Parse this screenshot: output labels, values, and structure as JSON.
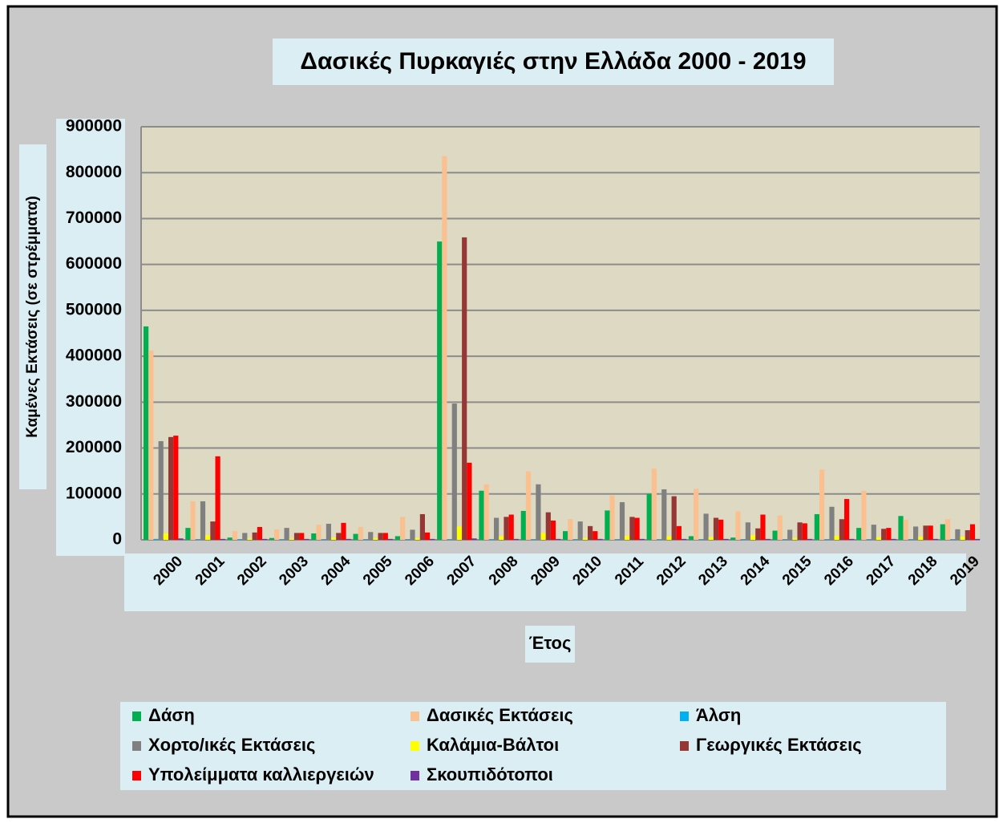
{
  "chart_data": {
    "type": "bar",
    "title": "Δασικές Πυρκαγιές στην Ελλάδα 2000 - 2019",
    "x_label": "Έτος",
    "y_label": "Καμένες Εκτάσεις (σε στρέμματα)",
    "categories": [
      "2000",
      "2001",
      "2002",
      "2003",
      "2004",
      "2005",
      "2006",
      "2007",
      "2008",
      "2009",
      "2010",
      "2011",
      "2012",
      "2013",
      "2014",
      "2015",
      "2016",
      "2017",
      "2018",
      "2019"
    ],
    "series": [
      {
        "name": "Δάση",
        "color": "#00b050",
        "values": [
          465000,
          26000,
          5000,
          4000,
          14000,
          13000,
          8000,
          650000,
          107000,
          63000,
          19000,
          64000,
          100000,
          8000,
          5000,
          20000,
          56000,
          26000,
          52000,
          34000
        ]
      },
      {
        "name": "Δασικές Εκτάσεις",
        "color": "#fac090",
        "values": [
          412000,
          84000,
          19000,
          23000,
          33000,
          28000,
          50000,
          836000,
          121000,
          149000,
          45000,
          97000,
          155000,
          111000,
          62000,
          53000,
          153000,
          107000,
          44000,
          45000
        ]
      },
      {
        "name": "Άλση",
        "color": "#00b0f0",
        "values": [
          2000,
          1000,
          1000,
          1000,
          1000,
          1000,
          1000,
          1000,
          1000,
          1000,
          1000,
          1000,
          1000,
          1000,
          1000,
          1000,
          1000,
          1000,
          1000,
          1000
        ]
      },
      {
        "name": "Χορτο/ικές Εκτάσεις",
        "color": "#808080",
        "values": [
          215000,
          84000,
          15000,
          26000,
          35000,
          17000,
          22000,
          297000,
          48000,
          121000,
          40000,
          82000,
          110000,
          57000,
          38000,
          22000,
          72000,
          33000,
          29000,
          23000
        ]
      },
      {
        "name": "Καλάμια-Βάλτοι",
        "color": "#ffff00",
        "values": [
          14000,
          10000,
          3000,
          3000,
          5000,
          4000,
          4000,
          29000,
          8000,
          15000,
          4000,
          9000,
          8000,
          6000,
          10000,
          4000,
          9000,
          6000,
          7000,
          7000
        ]
      },
      {
        "name": "Γεωργικές Εκτάσεις",
        "color": "#953735",
        "values": [
          224000,
          40000,
          16000,
          15000,
          15000,
          15000,
          56000,
          659000,
          50000,
          60000,
          30000,
          50000,
          95000,
          48000,
          25000,
          38000,
          45000,
          24000,
          31000,
          21000
        ]
      },
      {
        "name": "Υπολείμματα καλλιεργειών",
        "color": "#ff0000",
        "values": [
          227000,
          182000,
          28000,
          15000,
          37000,
          15000,
          16000,
          168000,
          55000,
          42000,
          19000,
          48000,
          30000,
          44000,
          55000,
          36000,
          89000,
          26000,
          31000,
          34000
        ]
      },
      {
        "name": "Σκουπιδότοποι",
        "color": "#7030a0",
        "values": [
          3000,
          2000,
          2000,
          2000,
          2000,
          2000,
          2000,
          3000,
          2000,
          2000,
          2000,
          2000,
          2000,
          2000,
          2000,
          2000,
          2000,
          2000,
          2000,
          2000
        ]
      }
    ],
    "ylim": [
      0,
      900000
    ],
    "yticks": [
      0,
      100000,
      200000,
      300000,
      400000,
      500000,
      600000,
      700000,
      800000,
      900000
    ],
    "grid": true
  }
}
